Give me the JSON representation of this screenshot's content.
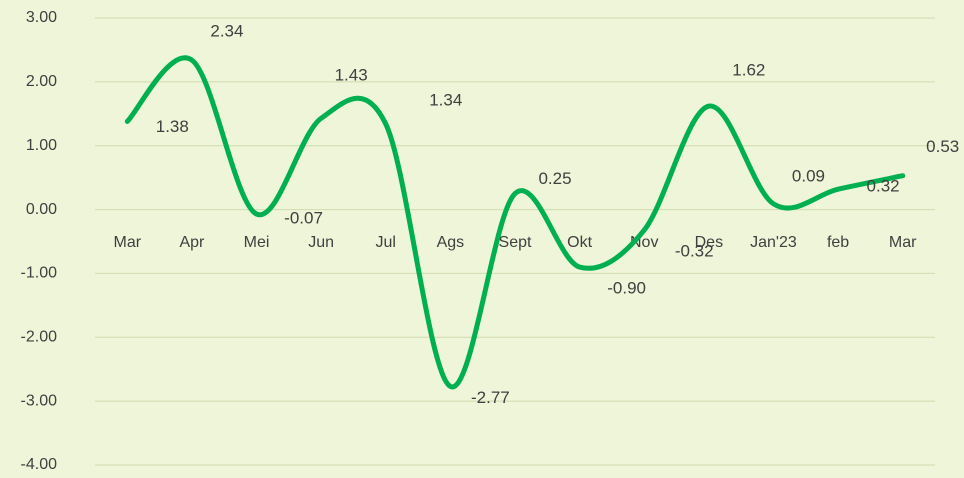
{
  "chart_data": {
    "type": "line",
    "categories": [
      "Mar",
      "Apr",
      "Mei",
      "Jun",
      "Jul",
      "Ags",
      "Sept",
      "Okt",
      "Nov",
      "Des",
      "Jan'23",
      "feb",
      "Mar"
    ],
    "series": [
      {
        "color": "#00b050",
        "values": [
          1.38,
          2.34,
          -0.07,
          1.43,
          1.34,
          -2.77,
          0.25,
          -0.9,
          -0.32,
          1.62,
          0.09,
          0.32,
          0.53
        ],
        "value_labels": [
          "1.38",
          "2.34",
          "-0.07",
          "1.43",
          "1.34",
          "-2.77",
          "0.25",
          "-0.90",
          "-0.32",
          "1.62",
          "0.09",
          "0.32",
          "0.53"
        ]
      }
    ],
    "ylim": [
      -4,
      3
    ],
    "yticks": [
      {
        "value": -4,
        "label": "-4.00"
      },
      {
        "value": -3,
        "label": "-3.00"
      },
      {
        "value": -2,
        "label": "-2.00"
      },
      {
        "value": -1,
        "label": "-1.00"
      },
      {
        "value": 0,
        "label": "0.00"
      },
      {
        "value": 1,
        "label": "1.00"
      },
      {
        "value": 2,
        "label": "2.00"
      },
      {
        "value": 3,
        "label": "3.00"
      }
    ],
    "grid": true,
    "smooth": true
  }
}
